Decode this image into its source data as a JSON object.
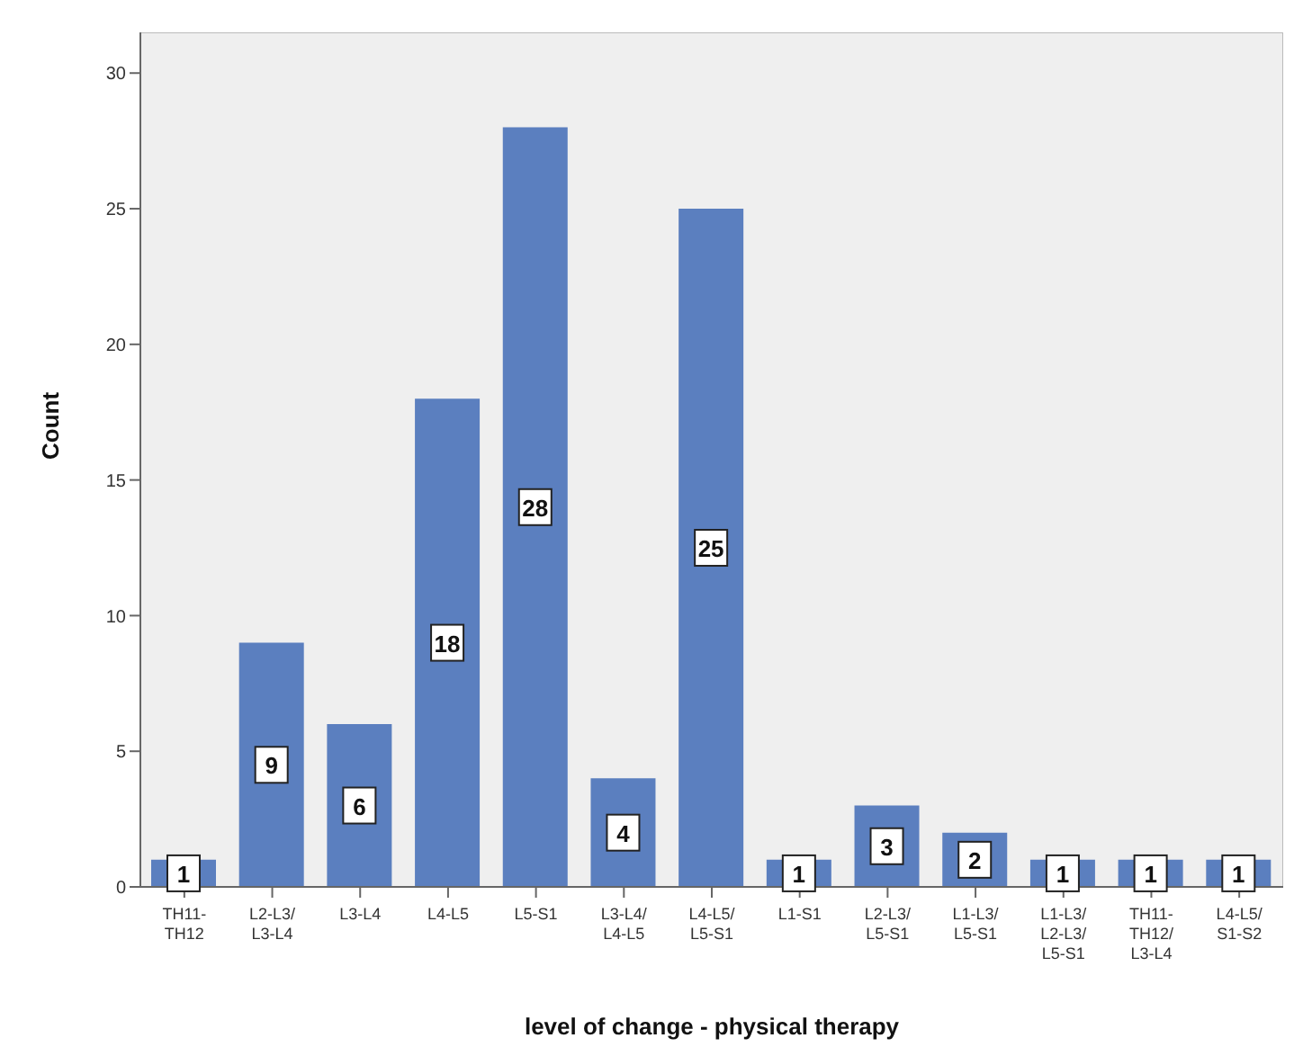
{
  "chart_data": {
    "type": "bar",
    "xlabel": "level of change - physical therapy",
    "ylabel": "Count",
    "categories": [
      "TH11- TH12",
      "L2-L3/ L3-L4",
      "L3-L4",
      "L4-L5",
      "L5-S1",
      "L3-L4/ L4-L5",
      "L4-L5/ L5-S1",
      "L1-S1",
      "L2-L3/ L5-S1",
      "L1-L3/ L5-S1",
      "L1-L3/ L2-L3/ L5-S1",
      "TH11- TH12/ L3-L4",
      "L4-L5/ S1-S2"
    ],
    "values": [
      1,
      9,
      6,
      18,
      28,
      4,
      25,
      1,
      3,
      2,
      1,
      1,
      1
    ],
    "color": "#5b7fbf",
    "ylim": [
      0,
      31.5
    ],
    "yticks": [
      0,
      5,
      10,
      15,
      20,
      25,
      30
    ],
    "grid": false,
    "data_labels": true
  }
}
